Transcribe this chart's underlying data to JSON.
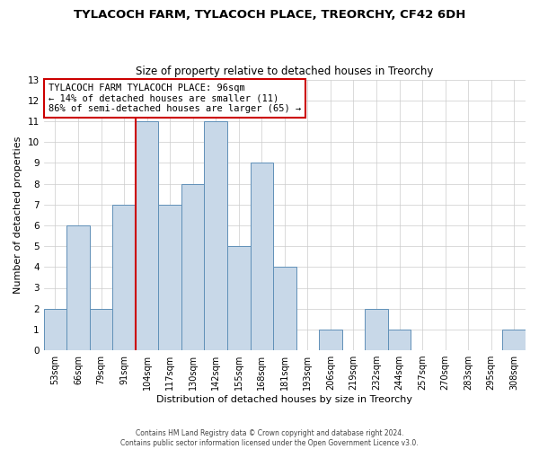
{
  "title": "TYLACOCH FARM, TYLACOCH PLACE, TREORCHY, CF42 6DH",
  "subtitle": "Size of property relative to detached houses in Treorchy",
  "xlabel": "Distribution of detached houses by size in Treorchy",
  "ylabel": "Number of detached properties",
  "footer_line1": "Contains HM Land Registry data © Crown copyright and database right 2024.",
  "footer_line2": "Contains public sector information licensed under the Open Government Licence v3.0.",
  "annotation_line1": "TYLACOCH FARM TYLACOCH PLACE: 96sqm",
  "annotation_line2": "← 14% of detached houses are smaller (11)",
  "annotation_line3": "86% of semi-detached houses are larger (65) →",
  "bin_labels": [
    "53sqm",
    "66sqm",
    "79sqm",
    "91sqm",
    "104sqm",
    "117sqm",
    "130sqm",
    "142sqm",
    "155sqm",
    "168sqm",
    "181sqm",
    "193sqm",
    "206sqm",
    "219sqm",
    "232sqm",
    "244sqm",
    "257sqm",
    "270sqm",
    "283sqm",
    "295sqm",
    "308sqm"
  ],
  "bar_heights": [
    2,
    6,
    2,
    7,
    11,
    7,
    8,
    11,
    5,
    9,
    4,
    0,
    1,
    0,
    2,
    1,
    0,
    0,
    0,
    0,
    1
  ],
  "bar_color": "#c8d8e8",
  "bar_edge_color": "#6090b8",
  "reference_line_color": "#cc0000",
  "reference_line_bin_index": 4,
  "ylim": [
    0,
    13
  ],
  "yticks": [
    0,
    1,
    2,
    3,
    4,
    5,
    6,
    7,
    8,
    9,
    10,
    11,
    12,
    13
  ],
  "annotation_box_color": "#ffffff",
  "annotation_box_edge_color": "#cc0000",
  "grid_color": "#cccccc",
  "background_color": "#ffffff",
  "title_fontsize": 9.5,
  "subtitle_fontsize": 8.5,
  "tick_fontsize": 7,
  "ylabel_fontsize": 8,
  "xlabel_fontsize": 8,
  "annotation_fontsize": 7.5,
  "footer_fontsize": 5.5
}
